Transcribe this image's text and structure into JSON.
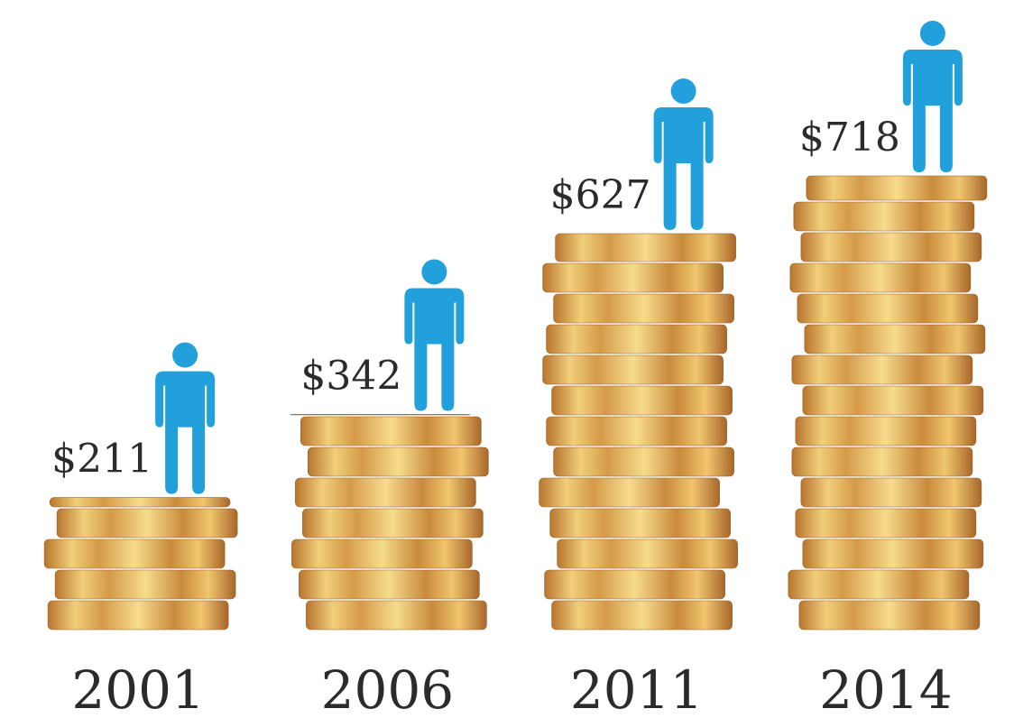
{
  "chart_data": {
    "type": "bar",
    "categories": [
      "2001",
      "2006",
      "2011",
      "2014"
    ],
    "values": [
      211,
      342,
      627,
      718
    ],
    "value_labels": [
      "$211",
      "$342",
      "$627",
      "$718"
    ],
    "color": "#e0a94a",
    "icon_color": "#22a0dc"
  }
}
